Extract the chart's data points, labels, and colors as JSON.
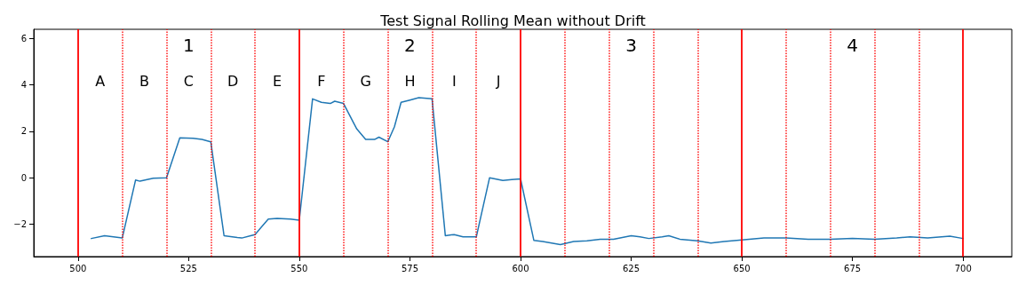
{
  "chart_data": {
    "type": "line",
    "title": "Test Signal Rolling Mean without Drift",
    "series": [
      {
        "color": "#1f77b4",
        "x": [
          503,
          506,
          510,
          513,
          514,
          517,
          520,
          523,
          526,
          528,
          530,
          533,
          536,
          537,
          539,
          540,
          542,
          543,
          545,
          548,
          550,
          553,
          555,
          557,
          558,
          560,
          563,
          565,
          567,
          568,
          570,
          571.5,
          573,
          575,
          577,
          580,
          583,
          585,
          587,
          590,
          593,
          596,
          598,
          600,
          603,
          605,
          609,
          612,
          615,
          618,
          621,
          625,
          627,
          629,
          632,
          633.5,
          636,
          640,
          643,
          646,
          650,
          655,
          660,
          665,
          670,
          675,
          680,
          685,
          688,
          692,
          697,
          700
        ],
        "values": [
          -2.62,
          -2.5,
          -2.6,
          -0.1,
          -0.15,
          -0.02,
          0.0,
          1.72,
          1.7,
          1.65,
          1.55,
          -2.5,
          -2.58,
          -2.6,
          -2.5,
          -2.45,
          -2.0,
          -1.78,
          -1.75,
          -1.78,
          -1.83,
          3.4,
          3.25,
          3.2,
          3.3,
          3.2,
          2.1,
          1.65,
          1.65,
          1.75,
          1.55,
          2.2,
          3.25,
          3.35,
          3.45,
          3.4,
          -2.5,
          -2.45,
          -2.55,
          -2.55,
          0.0,
          -0.12,
          -0.08,
          -0.05,
          -2.7,
          -2.75,
          -2.88,
          -2.75,
          -2.72,
          -2.65,
          -2.65,
          -2.5,
          -2.55,
          -2.62,
          -2.55,
          -2.5,
          -2.65,
          -2.72,
          -2.82,
          -2.75,
          -2.68,
          -2.6,
          -2.6,
          -2.65,
          -2.65,
          -2.62,
          -2.65,
          -2.6,
          -2.55,
          -2.6,
          -2.52,
          -2.62
        ]
      }
    ],
    "xlim": [
      490,
      711
    ],
    "xticks": [
      500,
      525,
      550,
      575,
      600,
      625,
      650,
      675,
      700
    ],
    "ylim": [
      -3.4,
      6.4
    ],
    "yticks": [
      -2,
      0,
      2,
      4,
      6
    ],
    "grid": false,
    "marker": "none",
    "line_style": "solid",
    "ref_lines": [
      {
        "axis": "x",
        "value": 500,
        "color": "#ff0000",
        "line_style": "solid"
      },
      {
        "axis": "x",
        "value": 510,
        "color": "#ff0000",
        "line_style": "dotted"
      },
      {
        "axis": "x",
        "value": 520,
        "color": "#ff0000",
        "line_style": "dotted"
      },
      {
        "axis": "x",
        "value": 530,
        "color": "#ff0000",
        "line_style": "dotted"
      },
      {
        "axis": "x",
        "value": 540,
        "color": "#ff0000",
        "line_style": "dotted"
      },
      {
        "axis": "x",
        "value": 550,
        "color": "#ff0000",
        "line_style": "solid"
      },
      {
        "axis": "x",
        "value": 560,
        "color": "#ff0000",
        "line_style": "dotted"
      },
      {
        "axis": "x",
        "value": 570,
        "color": "#ff0000",
        "line_style": "dotted"
      },
      {
        "axis": "x",
        "value": 580,
        "color": "#ff0000",
        "line_style": "dotted"
      },
      {
        "axis": "x",
        "value": 590,
        "color": "#ff0000",
        "line_style": "dotted"
      },
      {
        "axis": "x",
        "value": 600,
        "color": "#ff0000",
        "line_style": "solid"
      },
      {
        "axis": "x",
        "value": 610,
        "color": "#ff0000",
        "line_style": "dotted"
      },
      {
        "axis": "x",
        "value": 620,
        "color": "#ff0000",
        "line_style": "dotted"
      },
      {
        "axis": "x",
        "value": 630,
        "color": "#ff0000",
        "line_style": "dotted"
      },
      {
        "axis": "x",
        "value": 640,
        "color": "#ff0000",
        "line_style": "dotted"
      },
      {
        "axis": "x",
        "value": 650,
        "color": "#ff0000",
        "line_style": "solid"
      },
      {
        "axis": "x",
        "value": 660,
        "color": "#ff0000",
        "line_style": "dotted"
      },
      {
        "axis": "x",
        "value": 670,
        "color": "#ff0000",
        "line_style": "dotted"
      },
      {
        "axis": "x",
        "value": 680,
        "color": "#ff0000",
        "line_style": "dotted"
      },
      {
        "axis": "x",
        "value": 690,
        "color": "#ff0000",
        "line_style": "dotted"
      },
      {
        "axis": "x",
        "value": 700,
        "color": "#ff0000",
        "line_style": "solid"
      }
    ],
    "annotations": [
      "1",
      "2",
      "3",
      "4",
      "A",
      "B",
      "C",
      "D",
      "E",
      "F",
      "G",
      "H",
      "I",
      "J"
    ]
  }
}
